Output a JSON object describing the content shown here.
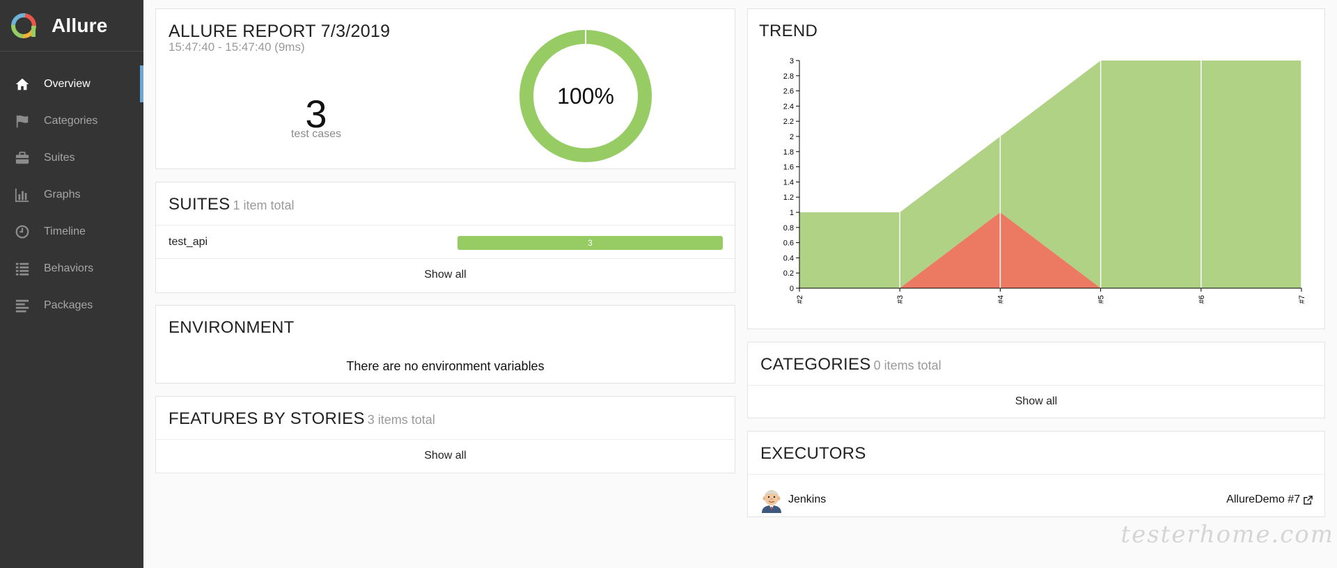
{
  "app": {
    "name": "Allure"
  },
  "sidebar": {
    "items": [
      {
        "label": "Overview",
        "icon": "home-icon",
        "active": true
      },
      {
        "label": "Categories",
        "icon": "flag-icon"
      },
      {
        "label": "Suites",
        "icon": "briefcase-icon"
      },
      {
        "label": "Graphs",
        "icon": "bar-chart-icon"
      },
      {
        "label": "Timeline",
        "icon": "clock-icon"
      },
      {
        "label": "Behaviors",
        "icon": "list-icon"
      },
      {
        "label": "Packages",
        "icon": "align-left-icon"
      }
    ]
  },
  "summary": {
    "title": "ALLURE REPORT 7/3/2019",
    "time": "15:47:40 - 15:47:40 (9ms)",
    "count": "3",
    "count_label": "test cases",
    "percent": "100%",
    "passed_fraction": 1.0
  },
  "suites": {
    "title": "SUITES",
    "subtitle": "1 item total",
    "rows": [
      {
        "name": "test_api",
        "count": "3"
      }
    ],
    "show_all": "Show all"
  },
  "environment": {
    "title": "ENVIRONMENT",
    "empty_text": "There are no environment variables"
  },
  "features": {
    "title": "FEATURES BY STORIES",
    "subtitle": "3 items total",
    "show_all": "Show all"
  },
  "trend": {
    "title": "TREND"
  },
  "categories": {
    "title": "CATEGORIES",
    "subtitle": "0 items total",
    "show_all": "Show all"
  },
  "executors": {
    "title": "EXECUTORS",
    "items": [
      {
        "name": "Jenkins",
        "build": "AllureDemo #7",
        "icon": "jenkins-avatar"
      }
    ]
  },
  "watermark": "testerhome.com",
  "colors": {
    "passed": "#97cc64",
    "failed": "#fd5a3e",
    "trend_passed": "#b0d285",
    "trend_failed": "#ec7a62",
    "sidebar_bg": "#343434",
    "accent": "#6ba6d8"
  },
  "chart_data": {
    "type": "area",
    "title": "TREND",
    "x": [
      "#2",
      "#3",
      "#4",
      "#5",
      "#6",
      "#7"
    ],
    "series": [
      {
        "name": "passed",
        "values": [
          1,
          1,
          1,
          3,
          3,
          3
        ]
      },
      {
        "name": "failed",
        "values": [
          0,
          0,
          1,
          0,
          0,
          0
        ]
      }
    ],
    "y_ticks": [
      "0",
      "0.2",
      "0.4",
      "0.6",
      "0.8",
      "1",
      "1.2",
      "1.4",
      "1.6",
      "1.8",
      "2",
      "2.2",
      "2.4",
      "2.6",
      "2.8",
      "3"
    ],
    "ylim": [
      0,
      3
    ],
    "stacked": true
  }
}
